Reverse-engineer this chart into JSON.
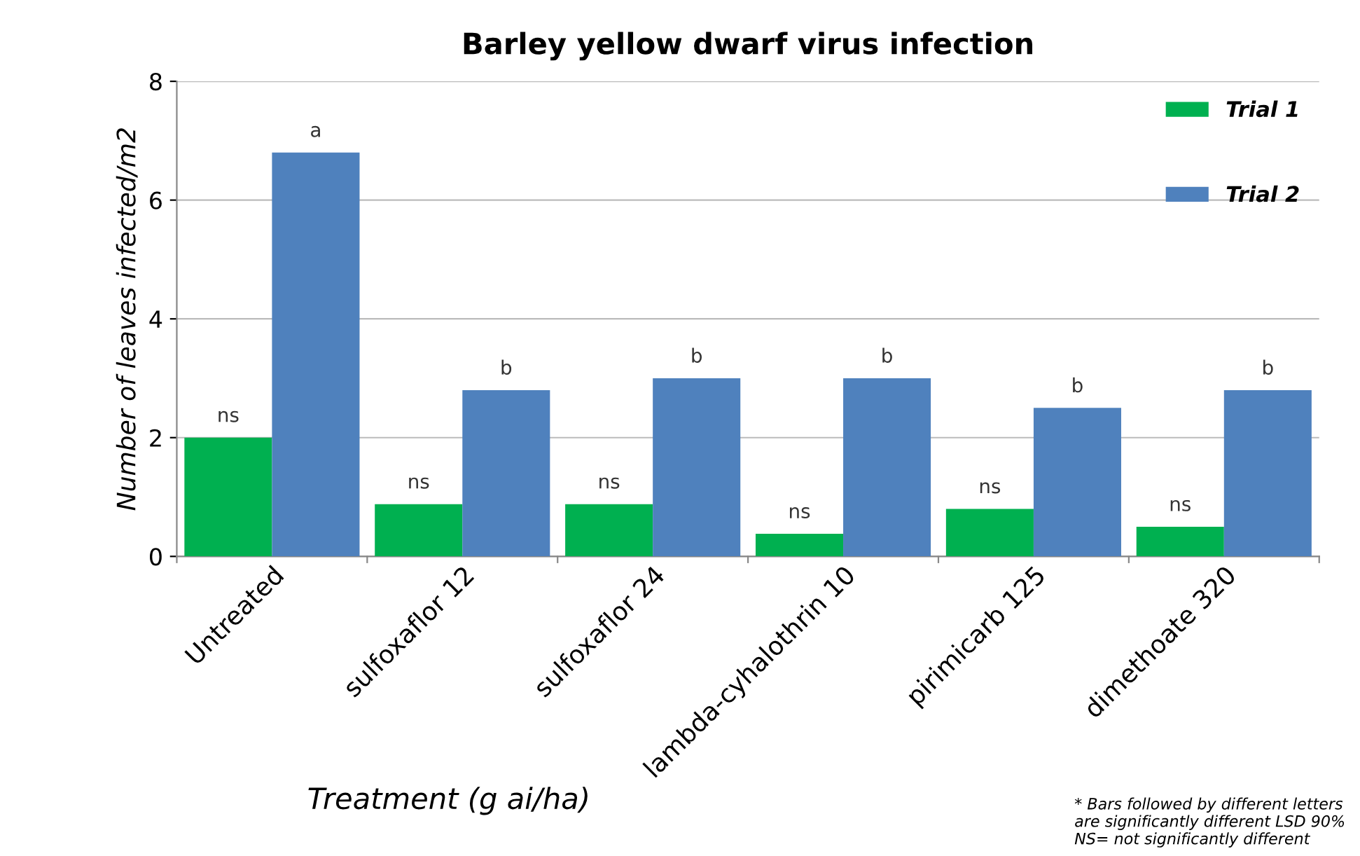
{
  "chart_data": {
    "type": "bar",
    "title": "Barley yellow dwarf virus infection",
    "xlabel": "Treatment (g ai/ha)",
    "ylabel": "Number of leaves infected/m2",
    "categories": [
      "Untreated",
      "sulfoxaflor 12",
      "sulfoxaflor 24",
      "lambda-cyhalothrin 10",
      "pirimicarb 125",
      "dimethoate 320"
    ],
    "series": [
      {
        "name": "Trial 1",
        "color": "#00b050",
        "values": [
          2.0,
          0.88,
          0.88,
          0.38,
          0.8,
          0.5
        ],
        "value_labels": [
          "ns",
          "ns",
          "ns",
          "ns",
          "ns",
          "ns"
        ]
      },
      {
        "name": "Trial 2",
        "color": "#4f81bd",
        "values": [
          6.8,
          2.8,
          3.0,
          3.0,
          2.5,
          2.8
        ],
        "value_labels": [
          "a",
          "b",
          "b",
          "b",
          "b",
          "b"
        ]
      }
    ],
    "ylim": [
      0,
      8
    ],
    "yticks": [
      0,
      2,
      4,
      6,
      8
    ],
    "grid": "y",
    "legend": "top right",
    "annotations": [
      "* Bars followed by different letters are significantly different LSD 90%\nNS= not significantly different"
    ]
  }
}
